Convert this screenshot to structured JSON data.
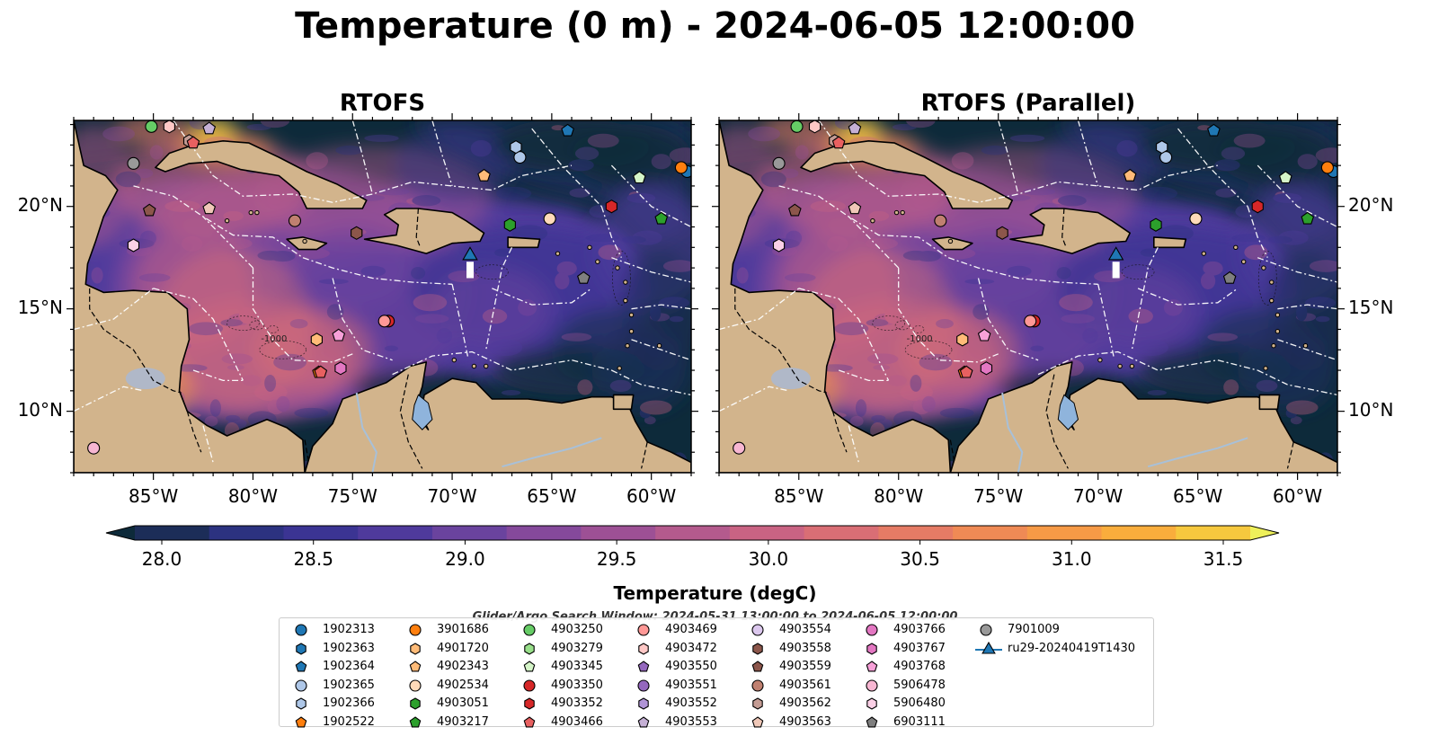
{
  "title": "Temperature (0 m) - 2024-06-05 12:00:00",
  "panels": [
    {
      "title": "RTOFS"
    },
    {
      "title": "RTOFS (Parallel)"
    }
  ],
  "map": {
    "lon_range": [
      -89,
      -58
    ],
    "lat_range": [
      7,
      24.2
    ],
    "lon_ticks": [
      -85,
      -80,
      -75,
      -70,
      -65,
      -60
    ],
    "lat_ticks": [
      10,
      15,
      20
    ],
    "lon_tick_labels": [
      "85°W",
      "80°W",
      "75°W",
      "70°W",
      "65°W",
      "60°W"
    ],
    "lat_tick_labels": [
      "10°N",
      "15°N",
      "20°N"
    ],
    "contour_label": "-1000",
    "colors": {
      "land": "#d2b48c",
      "ocean_deep": "#0b2233",
      "eez_line": "#ffffff",
      "river": "#a8c0d8"
    }
  },
  "colorbar": {
    "label": "Temperature (degC)",
    "ticks": [
      28.0,
      28.5,
      29.0,
      29.5,
      30.0,
      30.5,
      31.0,
      31.5
    ],
    "tick_labels": [
      "28.0",
      "28.5",
      "29.0",
      "29.5",
      "30.0",
      "30.5",
      "31.0",
      "31.5"
    ],
    "range": [
      28.0,
      31.5
    ],
    "colors": [
      "#0d2a3a",
      "#1c2d58",
      "#2c3280",
      "#3b3493",
      "#4f3a9c",
      "#6a439e",
      "#85499b",
      "#9d5095",
      "#b45a8d",
      "#c96383",
      "#d96e75",
      "#e57b65",
      "#ef8a55",
      "#f69a46",
      "#f9ad3c",
      "#f6c83e",
      "#eef05a"
    ]
  },
  "search_window": "Glider/Argo Search Window: 2024-05-31 13:00:00 to 2024-06-05 12:00:00",
  "legend": {
    "items": [
      {
        "label": "1902313",
        "color": "#1f77b4",
        "marker": "circle"
      },
      {
        "label": "1902363",
        "color": "#1f77b4",
        "marker": "hexagon"
      },
      {
        "label": "1902364",
        "color": "#1f77b4",
        "marker": "pentagon"
      },
      {
        "label": "1902365",
        "color": "#aec7e8",
        "marker": "circle"
      },
      {
        "label": "1902366",
        "color": "#aec7e8",
        "marker": "hexagon"
      },
      {
        "label": "1902522",
        "color": "#ff7f0e",
        "marker": "pentagon"
      },
      {
        "label": "3901686",
        "color": "#ff7f0e",
        "marker": "circle"
      },
      {
        "label": "4901720",
        "color": "#ffbb78",
        "marker": "hexagon"
      },
      {
        "label": "4902343",
        "color": "#ffbb78",
        "marker": "pentagon"
      },
      {
        "label": "4902534",
        "color": "#ffdab9",
        "marker": "circle"
      },
      {
        "label": "4903051",
        "color": "#2ca02c",
        "marker": "hexagon"
      },
      {
        "label": "4903217",
        "color": "#2ca02c",
        "marker": "pentagon"
      },
      {
        "label": "4903250",
        "color": "#66cc66",
        "marker": "circle"
      },
      {
        "label": "4903279",
        "color": "#98df8a",
        "marker": "hexagon"
      },
      {
        "label": "4903345",
        "color": "#d5f5c8",
        "marker": "pentagon"
      },
      {
        "label": "4903350",
        "color": "#d62728",
        "marker": "circle"
      },
      {
        "label": "4903352",
        "color": "#d62728",
        "marker": "hexagon"
      },
      {
        "label": "4903466",
        "color": "#e86060",
        "marker": "pentagon"
      },
      {
        "label": "4903469",
        "color": "#ff9896",
        "marker": "circle"
      },
      {
        "label": "4903472",
        "color": "#ffc8c6",
        "marker": "hexagon"
      },
      {
        "label": "4903550",
        "color": "#9467bd",
        "marker": "pentagon"
      },
      {
        "label": "4903551",
        "color": "#9467bd",
        "marker": "circle"
      },
      {
        "label": "4903552",
        "color": "#b094d6",
        "marker": "hexagon"
      },
      {
        "label": "4903553",
        "color": "#c5b0d5",
        "marker": "pentagon"
      },
      {
        "label": "4903554",
        "color": "#dcc8ee",
        "marker": "circle"
      },
      {
        "label": "4903558",
        "color": "#8c564b",
        "marker": "hexagon"
      },
      {
        "label": "4903559",
        "color": "#8c564b",
        "marker": "pentagon"
      },
      {
        "label": "4903561",
        "color": "#c08070",
        "marker": "circle"
      },
      {
        "label": "4903562",
        "color": "#c49c94",
        "marker": "hexagon"
      },
      {
        "label": "4903563",
        "color": "#f0c8b8",
        "marker": "pentagon"
      },
      {
        "label": "4903766",
        "color": "#e377c2",
        "marker": "circle"
      },
      {
        "label": "4903767",
        "color": "#e377c2",
        "marker": "hexagon"
      },
      {
        "label": "4903768",
        "color": "#f7a0d8",
        "marker": "pentagon"
      },
      {
        "label": "5906478",
        "color": "#f7b6d2",
        "marker": "circle"
      },
      {
        "label": "5906480",
        "color": "#fbd0e6",
        "marker": "hexagon"
      },
      {
        "label": "6903111",
        "color": "#7f7f7f",
        "marker": "pentagon"
      },
      {
        "label": "7901009",
        "color": "#999999",
        "marker": "circle"
      },
      {
        "label": "ru29-20240419T1430",
        "color": "#1f77b4",
        "marker": "triangle"
      }
    ]
  },
  "floats": [
    {
      "label": "1902313",
      "lon": -58.2,
      "lat": 21.7
    },
    {
      "label": "1902364",
      "lon": -64.2,
      "lat": 23.7
    },
    {
      "label": "1902365",
      "lon": -66.6,
      "lat": 22.4
    },
    {
      "label": "1902366",
      "lon": -66.8,
      "lat": 22.9
    },
    {
      "label": "1902522",
      "lon": -76.7,
      "lat": 11.9
    },
    {
      "label": "3901686",
      "lon": -58.5,
      "lat": 21.9
    },
    {
      "label": "4901720",
      "lon": -76.8,
      "lat": 13.5
    },
    {
      "label": "4902343",
      "lon": -68.4,
      "lat": 21.5
    },
    {
      "label": "4902534",
      "lon": -65.1,
      "lat": 19.4
    },
    {
      "label": "4903217",
      "lon": -59.5,
      "lat": 19.4
    },
    {
      "label": "4903051",
      "lon": -67.1,
      "lat": 19.1
    },
    {
      "label": "4903250",
      "lon": -85.1,
      "lat": 23.9
    },
    {
      "label": "4903345",
      "lon": -60.6,
      "lat": 21.4
    },
    {
      "label": "4903350",
      "lon": -73.2,
      "lat": 14.4
    },
    {
      "label": "4903352",
      "lon": -62.0,
      "lat": 20.0
    },
    {
      "label": "4903466",
      "lon": -76.6,
      "lat": 11.9
    },
    {
      "label": "4903469",
      "lon": -73.4,
      "lat": 14.4
    },
    {
      "label": "4903472",
      "lon": -84.2,
      "lat": 23.9
    },
    {
      "label": "4903553",
      "lon": -82.2,
      "lat": 23.8
    },
    {
      "label": "4903558",
      "lon": -74.8,
      "lat": 18.7
    },
    {
      "label": "4903559",
      "lon": -85.2,
      "lat": 19.8
    },
    {
      "label": "4903561",
      "lon": -77.9,
      "lat": 19.3
    },
    {
      "label": "4903562",
      "lon": -83.2,
      "lat": 23.2
    },
    {
      "label": "4903563",
      "lon": -82.2,
      "lat": 19.9
    },
    {
      "label": "4903767",
      "lon": -75.6,
      "lat": 12.1
    },
    {
      "label": "4903768",
      "lon": -75.7,
      "lat": 13.7
    },
    {
      "label": "5906478",
      "lon": -88.0,
      "lat": 8.2
    },
    {
      "label": "5906480",
      "lon": -86.0,
      "lat": 18.1
    },
    {
      "label": "4903466",
      "lon": -83.0,
      "lat": 23.1
    },
    {
      "label": "6903111",
      "lon": -63.4,
      "lat": 16.5
    },
    {
      "label": "7901009",
      "lon": -86.0,
      "lat": 22.1
    },
    {
      "label": "ru29-20240419T1430",
      "lon": -69.1,
      "lat": 17.6
    }
  ]
}
